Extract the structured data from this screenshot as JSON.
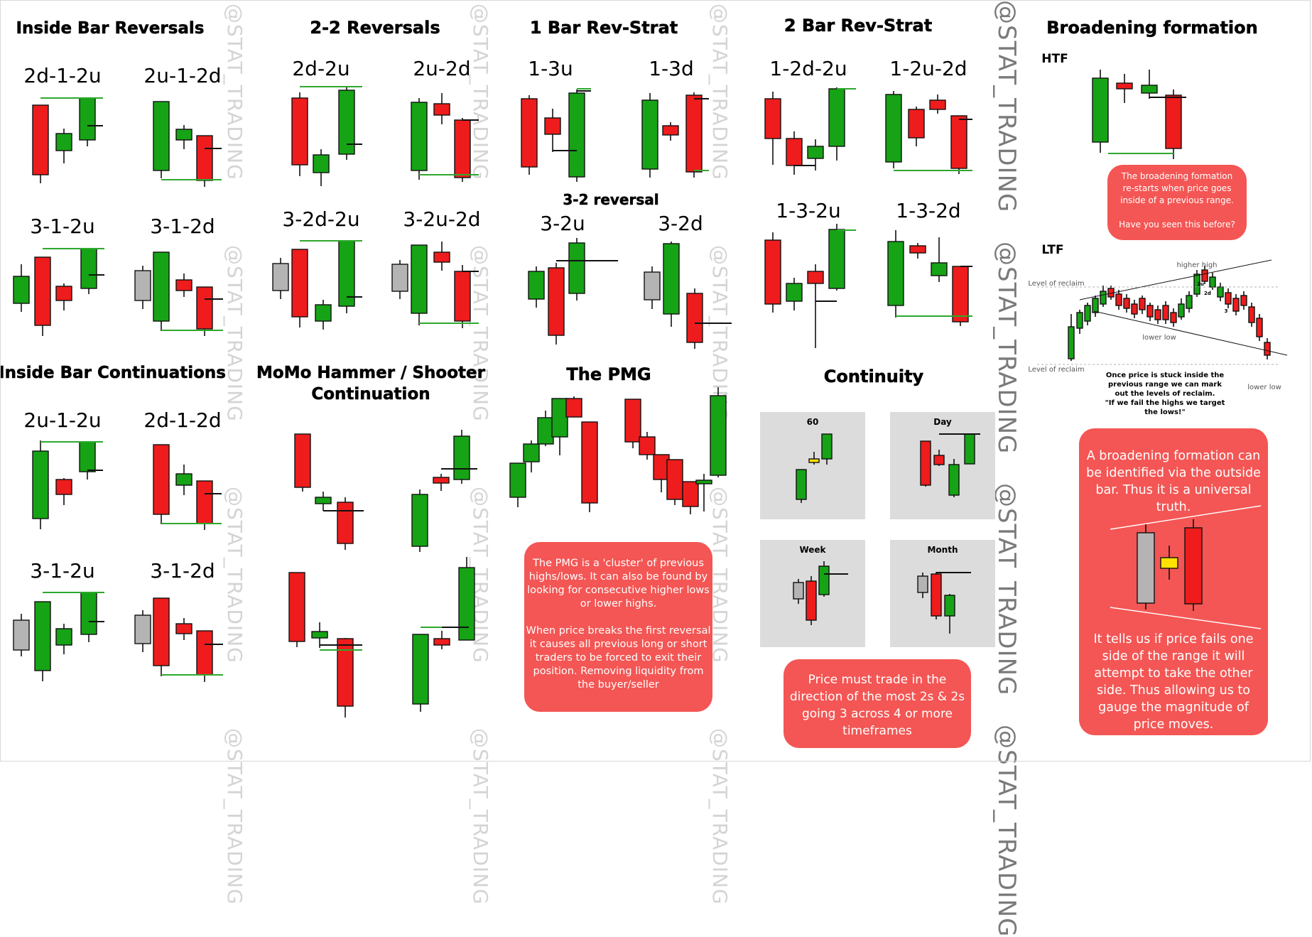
{
  "watermark": "@STAT_TRADING",
  "colors": {
    "bull": "#16a316",
    "bear": "#ee1c1c",
    "neutral": "#b4b4b4",
    "inside_yellow": "#ffe100",
    "line_green": "#2ea82e",
    "box_red": "#f35654",
    "panel_bg": "#dcdcdc"
  },
  "sections": {
    "inside_bar_reversals": "Inside Bar Reversals",
    "two_two_reversals": "2-2 Reversals",
    "one_bar_rev_strat": "1 Bar Rev-Strat",
    "two_bar_rev_strat": "2 Bar Rev-Strat",
    "broadening": "Broadening formation",
    "inside_bar_continuations": "Inside Bar Continuations",
    "momo": "MoMo Hammer / Shooter",
    "momo2": "Continuation",
    "three_two_reversal": "3-2 reversal",
    "pmg": "The PMG",
    "continuity": "Continuity"
  },
  "labels": {
    "ibr1": "2d-1-2u",
    "ibr2": "2u-1-2d",
    "ibr3": "3-1-2u",
    "ibr4": "3-1-2d",
    "r22_1": "2d-2u",
    "r22_2": "2u-2d",
    "r22_3": "3-2d-2u",
    "r22_4": "3-2u-2d",
    "b1_1": "1-3u",
    "b1_2": "1-3d",
    "b1_3": "3-2u",
    "b1_4": "3-2d",
    "b2_1": "1-2d-2u",
    "b2_2": "1-2u-2d",
    "b2_3": "1-3-2u",
    "b2_4": "1-3-2d",
    "ibc1": "2u-1-2u",
    "ibc2": "2d-1-2d",
    "ibc3": "3-1-2u",
    "ibc4": "3-1-2d"
  },
  "broadening": {
    "htf": "HTF",
    "ltf": "LTF",
    "box1": [
      "The broadening formation",
      "re-starts when price goes",
      "inside of a previous range.",
      "",
      "Have you seen this before?"
    ],
    "higher_high": "higher high",
    "lower_low_1": "lower low",
    "lower_low_2": "lower low",
    "reclaim_1": "Level of reclaim",
    "reclaim_2": "Level of reclaim",
    "tag_2u": "2u",
    "tag_2d": "2d",
    "tag_3": "3",
    "note": [
      "Once price is stuck inside the",
      "previous range we can mark",
      "out the levels of reclaim.",
      "\"If we fail the highs we target",
      "the lows!\""
    ],
    "box2_top": [
      "A broadening formation can",
      "be identified via the outside",
      "bar. Thus it is a universal",
      "truth."
    ],
    "box2_bottom": [
      "It tells us if price fails one",
      "side of the range it will",
      "attempt to take the other",
      "side. Thus allowing us to",
      "gauge the magnitude of",
      "price moves."
    ]
  },
  "pmg_box": [
    "The PMG is a 'cluster' of previous",
    "highs/lows. It can also be found by",
    "looking for consecutive higher lows",
    "or lower highs.",
    "",
    "When price breaks the first reversal",
    "it causes all previous long or short",
    "traders to be forced to exit their",
    "position. Removing liquidity from",
    "the buyer/seller"
  ],
  "continuity": {
    "tf1": "60",
    "tf2": "Day",
    "tf3": "Week",
    "tf4": "Month",
    "box": [
      "Price must trade in the",
      "direction of the most 2s & 2s",
      "going 3 across 4 or more",
      "timeframes"
    ]
  }
}
